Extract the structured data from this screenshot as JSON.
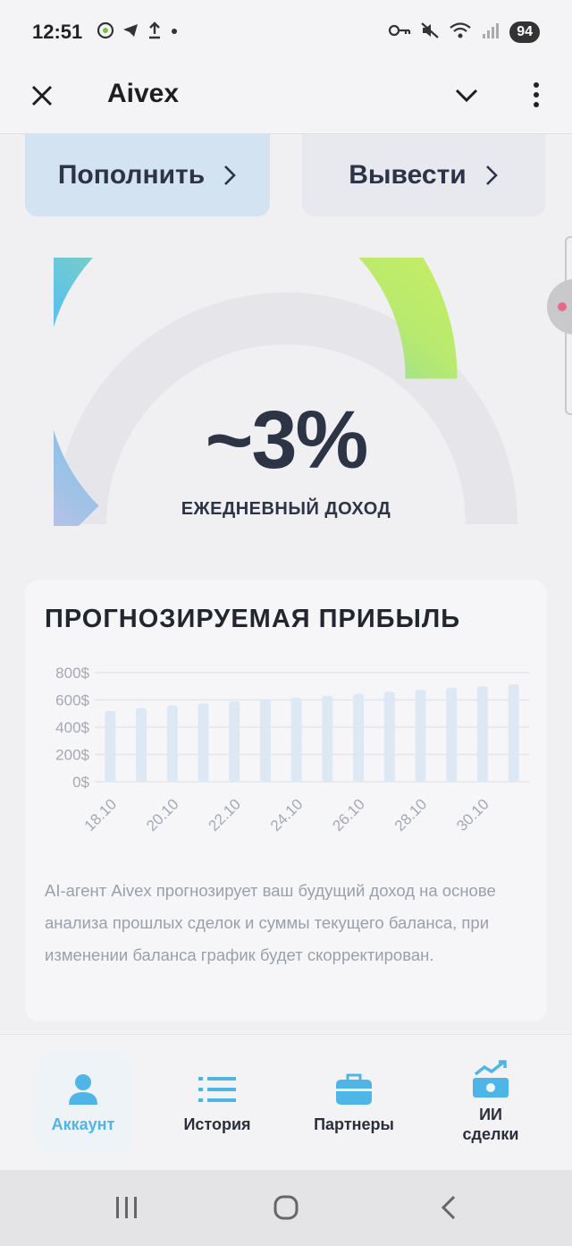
{
  "status_bar": {
    "time": "12:51",
    "battery": "94",
    "icons_left": [
      "whatsapp-icon",
      "telegram-icon",
      "upload-icon",
      "dot-icon"
    ],
    "icons_right": [
      "key-icon",
      "mute-icon",
      "wifi-icon",
      "signal-icon"
    ]
  },
  "header": {
    "title": "Aivex"
  },
  "actions": {
    "deposit_label": "Пополнить",
    "withdraw_label": "Вывести"
  },
  "gauge": {
    "value": "~3%",
    "caption": "ЕЖЕДНЕВНЫЙ ДОХОД",
    "fill_fraction": 0.75,
    "colors": [
      "#b9bfe0",
      "#5cc1ec",
      "#c8ec5e"
    ]
  },
  "forecast": {
    "title": "ПРОГНОЗИРУЕМАЯ ПРИБЫЛЬ",
    "description": "AI-агент Aivex прогнозирует ваш будущий доход на основе анализа прошлых сделок и суммы текущего баланса, при изменении баланса график будет скорректирован."
  },
  "chart_data": {
    "type": "bar",
    "x_tick_labels": [
      "18.10",
      "20.10",
      "22.10",
      "24.10",
      "26.10",
      "28.10",
      "30.10"
    ],
    "values": [
      520,
      540,
      560,
      575,
      590,
      605,
      615,
      630,
      645,
      660,
      675,
      690,
      700,
      715
    ],
    "y_ticks": [
      "800$",
      "600$",
      "400$",
      "200$",
      "0$"
    ],
    "ylim": [
      0,
      800
    ],
    "bar_color": "#dce9f5",
    "grid": true
  },
  "nav": {
    "items": [
      {
        "label": "Аккаунт",
        "active": true
      },
      {
        "label": "История",
        "active": false
      },
      {
        "label": "Партнеры",
        "active": false
      },
      {
        "label": "ИИ сделки",
        "active": false
      }
    ],
    "active_color": "#4fb5e6"
  }
}
